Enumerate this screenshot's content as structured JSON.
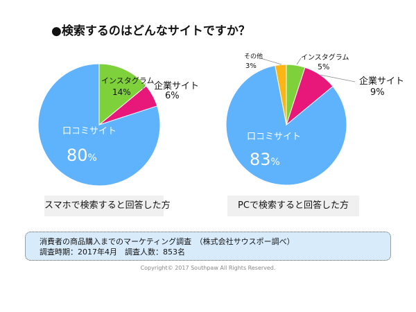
{
  "title": "●検索するのはどんなサイトですか？",
  "chart_data": [
    {
      "type": "pie",
      "title": "スマホで検索すると回答した方",
      "slices": [
        {
          "label": "インスタグラム",
          "value": 14,
          "text": "14%",
          "color": "#7fd13b"
        },
        {
          "label": "企業サイト",
          "value": 6,
          "text": "6%",
          "color": "#e8177a"
        },
        {
          "label": "口コミサイト",
          "value": 80,
          "text": "80",
          "color": "#5eb3fc"
        }
      ]
    },
    {
      "type": "pie",
      "title": "PCで検索すると回答した方",
      "slices": [
        {
          "label": "インスタグラム",
          "value": 5,
          "text": "5%",
          "color": "#7fd13b"
        },
        {
          "label": "企業サイト",
          "value": 9,
          "text": "9%",
          "color": "#e8177a"
        },
        {
          "label": "口コミサイト",
          "value": 83,
          "text": "83",
          "color": "#5eb3fc"
        },
        {
          "label": "その他",
          "value": 3,
          "text": "3%",
          "color": "#fbb615"
        }
      ]
    }
  ],
  "percent_sign": "%",
  "note": {
    "line1": "消費者の商品購入までのマーケティング調査　（株式会社サウスポー調べ）",
    "line2": "調査時期：2017年4月　調査人数：853名"
  },
  "copyright": "Copyright© 2017 Southpaw All Rights Reserved."
}
